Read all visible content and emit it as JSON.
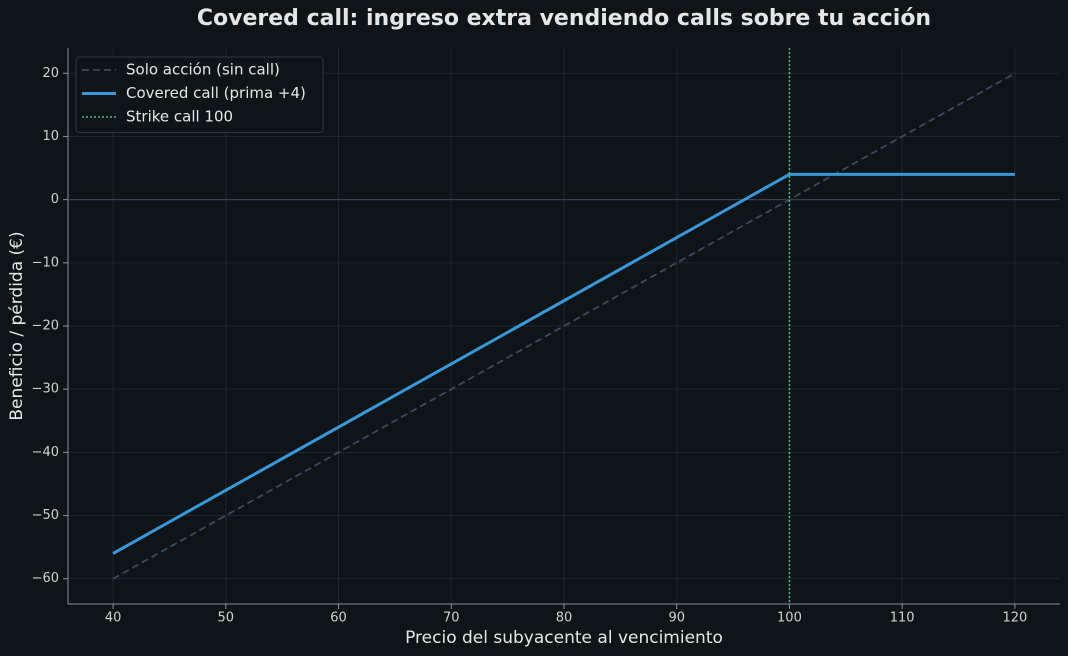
{
  "chart_data": {
    "type": "line",
    "title": "Covered call: ingreso extra vendiendo calls sobre tu acción",
    "x_label": "Precio del subyacente al vencimiento",
    "y_label": "Beneficio / pérdida (€)",
    "x": [
      40,
      100,
      120
    ],
    "series": [
      {
        "name": "Solo acción (sin call)",
        "color": "#3b4a5e",
        "dash": "dashed",
        "values": [
          -60,
          0,
          20
        ]
      },
      {
        "name": "Covered call (prima +4)",
        "color": "#3a98d8",
        "dash": "solid",
        "values": [
          -56,
          4,
          4
        ]
      }
    ],
    "vlines": [
      {
        "name": "Strike call 100",
        "x": 100,
        "color": "#3fbf7f"
      }
    ],
    "hlines": [
      {
        "y": 0,
        "color": "#3a4454"
      }
    ],
    "xlim": [
      36,
      124
    ],
    "ylim": [
      -64,
      24
    ],
    "xticks": [
      40,
      50,
      60,
      70,
      80,
      90,
      100,
      110,
      120
    ],
    "yticks": [
      {
        "value": -60,
        "label": "−60"
      },
      {
        "value": -50,
        "label": "−50"
      },
      {
        "value": -40,
        "label": "−40"
      },
      {
        "value": -30,
        "label": "−30"
      },
      {
        "value": -20,
        "label": "−20"
      },
      {
        "value": -10,
        "label": "−10"
      },
      0,
      10,
      20
    ],
    "grid": true,
    "legend": "upper left"
  }
}
